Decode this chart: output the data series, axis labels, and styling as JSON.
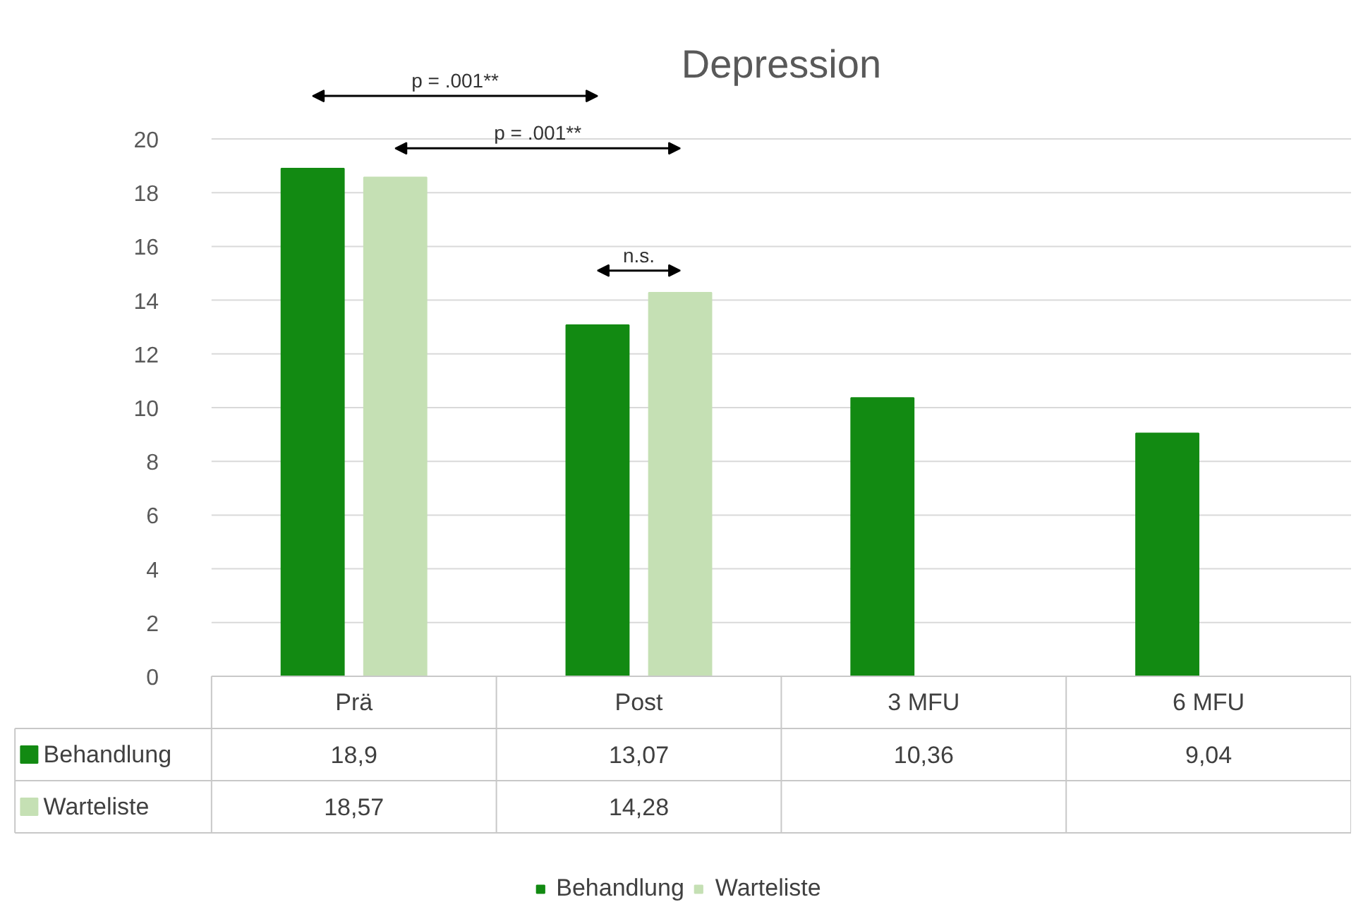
{
  "chart_data": {
    "type": "bar",
    "title": "Depression",
    "categories": [
      "Prä",
      "Post",
      "3 MFU",
      "6 MFU"
    ],
    "series": [
      {
        "name": "Behandlung",
        "color": "#128a12",
        "values": [
          18.9,
          13.07,
          10.36,
          9.04
        ],
        "value_labels": [
          "18,9",
          "13,07",
          "10,36",
          "9,04"
        ]
      },
      {
        "name": "Warteliste",
        "color": "#c5e0b4",
        "values": [
          18.57,
          14.28,
          null,
          null
        ],
        "value_labels": [
          "18,57",
          "14,28",
          null,
          null
        ]
      }
    ],
    "ylim": [
      0,
      20
    ],
    "yticks": [
      0,
      2,
      4,
      6,
      8,
      10,
      12,
      14,
      16,
      18,
      20
    ],
    "grid": "y",
    "legend": "bottom",
    "annotations": [
      "p = .001**",
      "p = .001**",
      "n.s."
    ]
  }
}
